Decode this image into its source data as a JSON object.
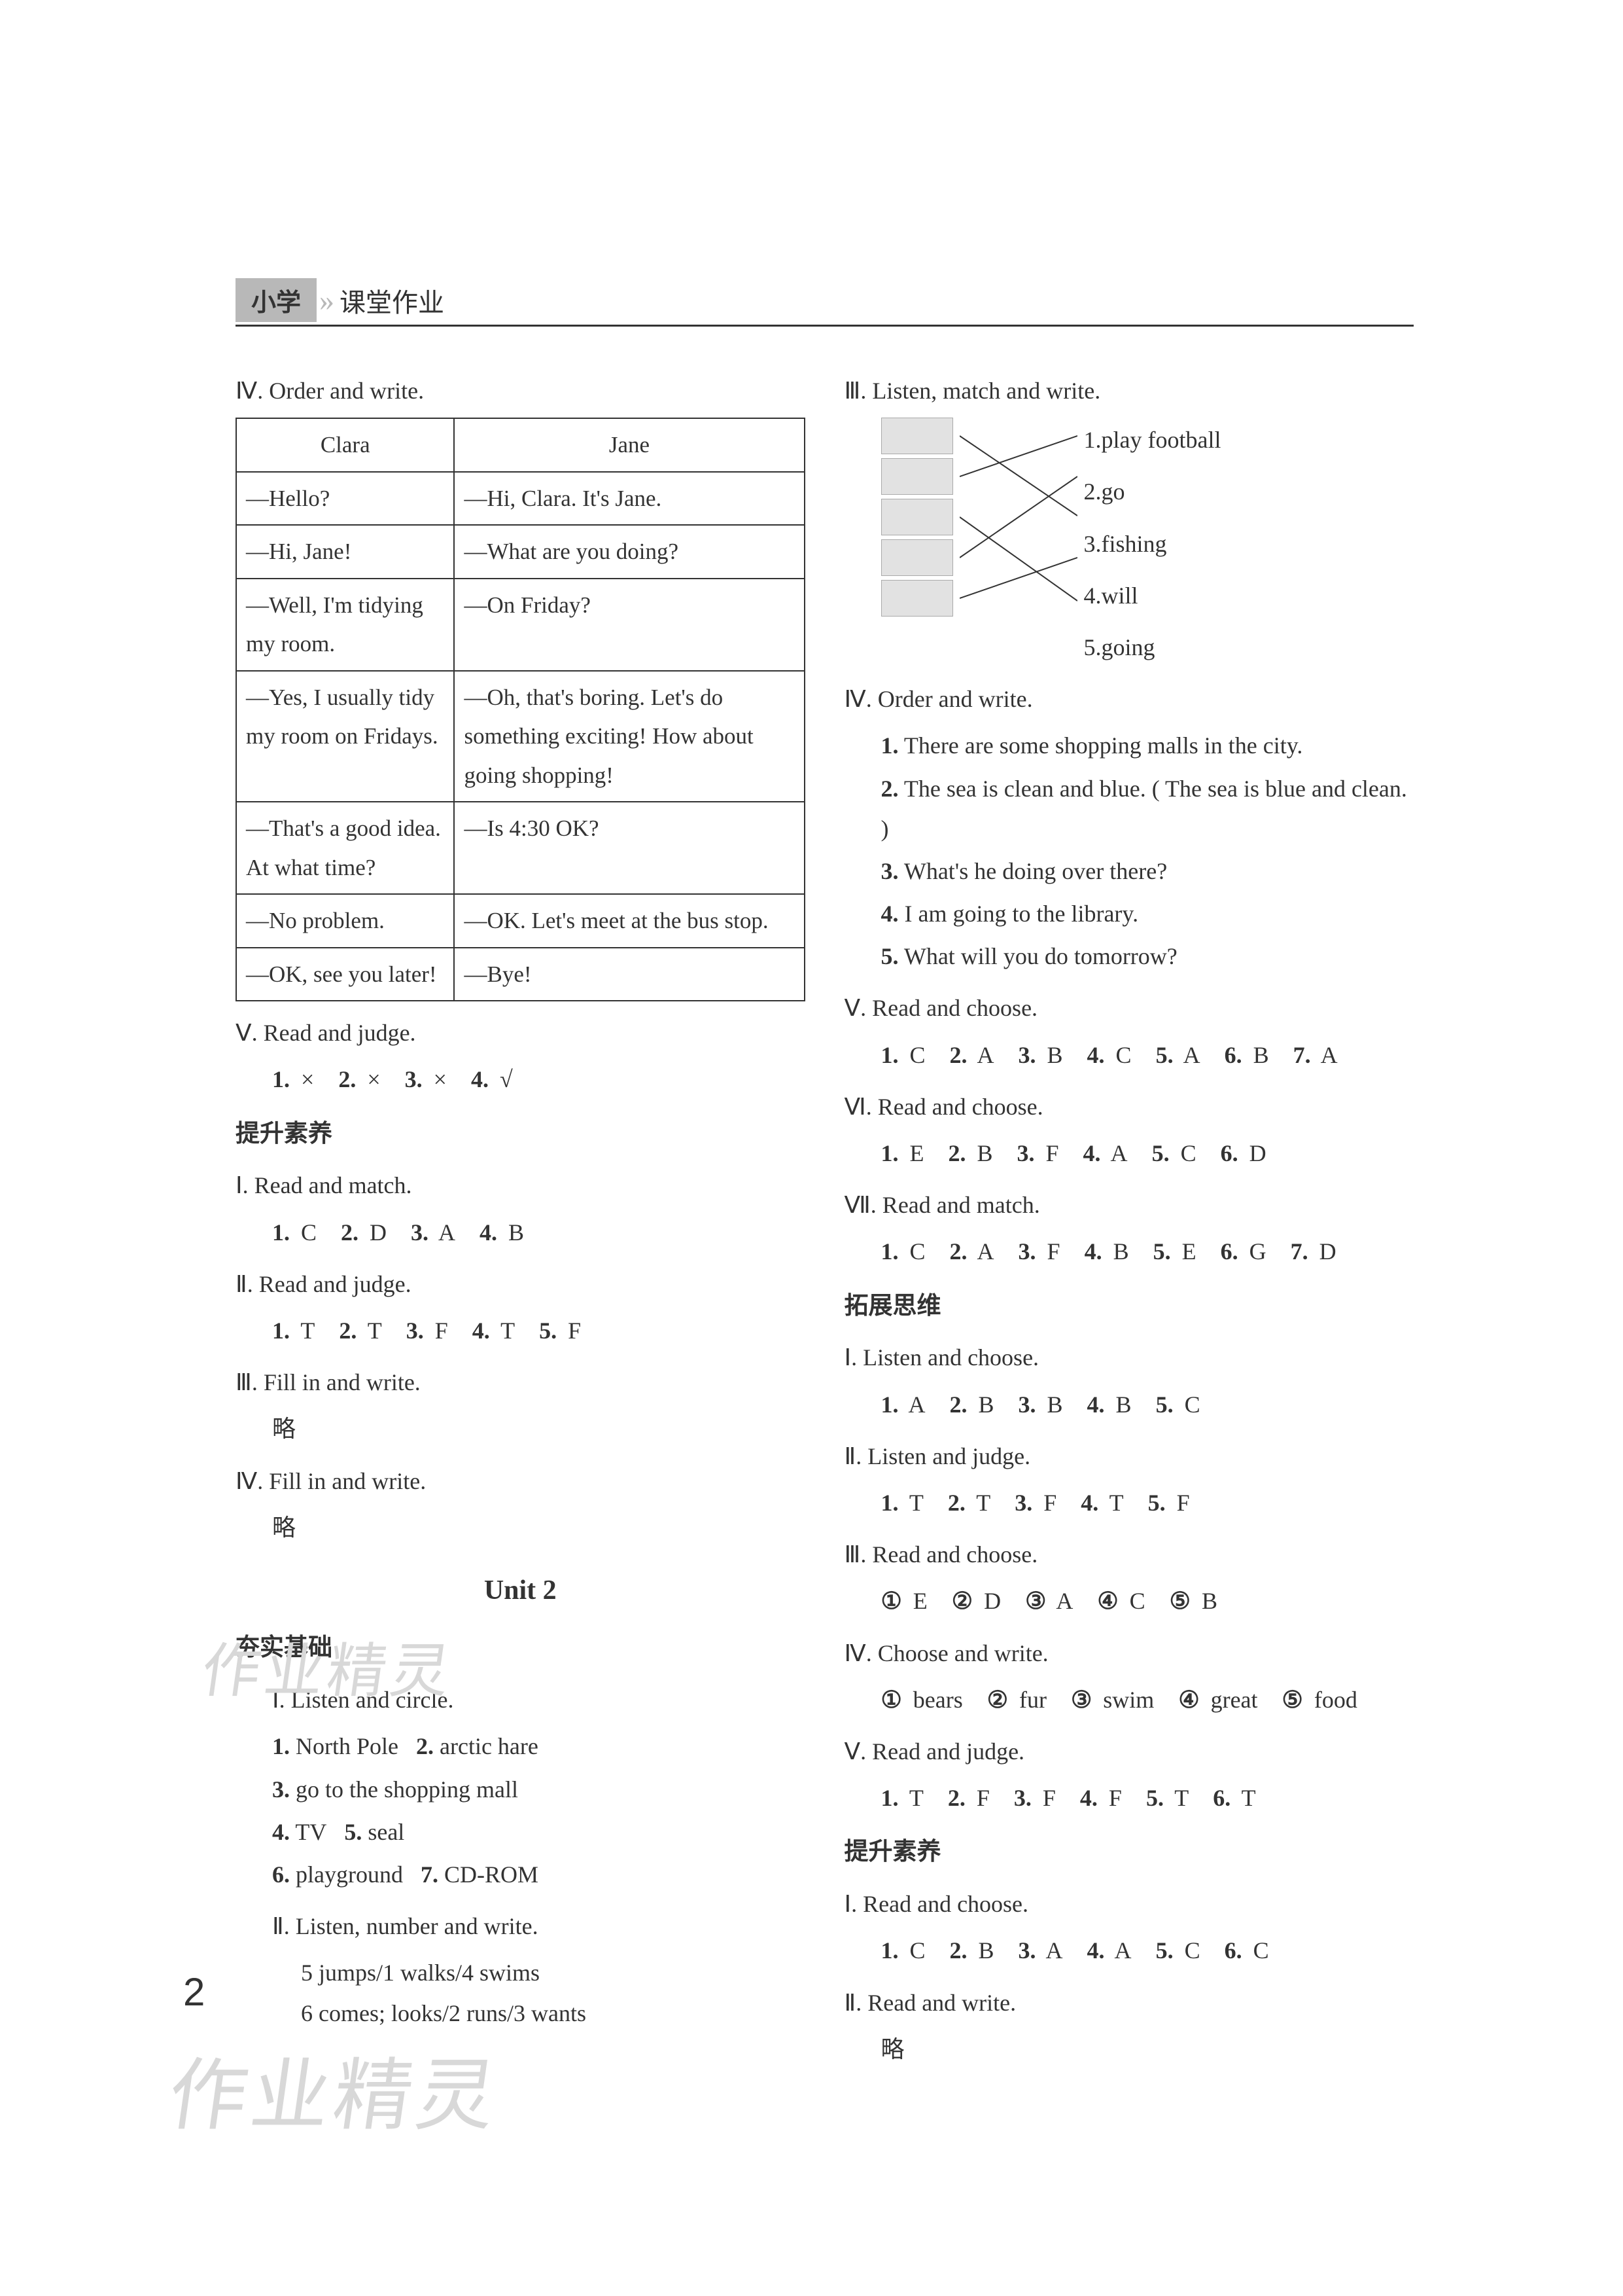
{
  "header": {
    "tag": "小学",
    "sub": "课堂作业"
  },
  "pageNumber": "2",
  "watermark": "作业精灵",
  "left": {
    "s4_title": "Ⅳ. Order and write.",
    "table": {
      "head": [
        "Clara",
        "Jane"
      ],
      "rows": [
        [
          "—Hello?",
          "—Hi, Clara. It's Jane."
        ],
        [
          "—Hi, Jane!",
          "—What are you doing?"
        ],
        [
          "—Well, I'm tidying my room.",
          "—On Friday?"
        ],
        [
          "—Yes, I usually tidy my room on Fridays.",
          "—Oh, that's boring. Let's do something exciting! How about going shopping!"
        ],
        [
          "—That's a good idea. At what time?",
          "—Is 4:30 OK?"
        ],
        [
          "—No problem.",
          "—OK. Let's meet at the bus stop."
        ],
        [
          "—OK, see you later!",
          "—Bye!"
        ]
      ]
    },
    "s5_title": "Ⅴ. Read and judge.",
    "s5_ans": [
      [
        "1.",
        "×"
      ],
      [
        "2.",
        "×"
      ],
      [
        "3.",
        "×"
      ],
      [
        "4.",
        "√"
      ]
    ],
    "lift_title": "提升素养",
    "l1_title": "Ⅰ. Read and match.",
    "l1_ans": [
      [
        "1.",
        "C"
      ],
      [
        "2.",
        "D"
      ],
      [
        "3.",
        "A"
      ],
      [
        "4.",
        "B"
      ]
    ],
    "l2_title": "Ⅱ. Read and judge.",
    "l2_ans": [
      [
        "1.",
        "T"
      ],
      [
        "2.",
        "T"
      ],
      [
        "3.",
        "F"
      ],
      [
        "4.",
        "T"
      ],
      [
        "5.",
        "F"
      ]
    ],
    "l3_title": "Ⅲ. Fill in and write.",
    "l3_ans": "略",
    "l4_title": "Ⅳ. Fill in and write.",
    "l4_ans": "略",
    "unit_title": "Unit 2",
    "base_title": "夯实基础",
    "b1_title": "Ⅰ. Listen and circle.",
    "b1_lines": [
      [
        [
          "1.",
          "North Pole"
        ],
        [
          "2.",
          "arctic hare"
        ]
      ],
      [
        [
          "3.",
          "go to the shopping mall"
        ]
      ],
      [
        [
          "4.",
          "TV"
        ],
        [
          "5.",
          "seal"
        ]
      ],
      [
        [
          "6.",
          "playground"
        ],
        [
          "7.",
          "CD-ROM"
        ]
      ]
    ],
    "b2_title": "Ⅱ. Listen, number and write.",
    "b2_lines": [
      "5 jumps/1 walks/4 swims",
      "6 comes; looks/2 runs/3 wants"
    ]
  },
  "right": {
    "s3_title": "Ⅲ. Listen, match and write.",
    "match_labels": [
      "1.play football",
      "2.go",
      "3.fishing",
      "4.will",
      "5.going"
    ],
    "s4_title": "Ⅳ. Order and write.",
    "s4_list": [
      [
        "1.",
        "There are some shopping malls in the city."
      ],
      [
        "2.",
        "The sea is clean and blue. ( The sea is blue and clean. )"
      ],
      [
        "3.",
        "What's he doing over there?"
      ],
      [
        "4.",
        "I am going to the library."
      ],
      [
        "5.",
        "What will you do tomorrow?"
      ]
    ],
    "s5_title": "Ⅴ. Read and choose.",
    "s5_ans": [
      [
        "1.",
        "C"
      ],
      [
        "2.",
        "A"
      ],
      [
        "3.",
        "B"
      ],
      [
        "4.",
        "C"
      ],
      [
        "5.",
        "A"
      ],
      [
        "6.",
        "B"
      ],
      [
        "7.",
        "A"
      ]
    ],
    "s6_title": "Ⅵ. Read and choose.",
    "s6_ans": [
      [
        "1.",
        "E"
      ],
      [
        "2.",
        "B"
      ],
      [
        "3.",
        "F"
      ],
      [
        "4.",
        "A"
      ],
      [
        "5.",
        "C"
      ],
      [
        "6.",
        "D"
      ]
    ],
    "s7_title": "Ⅶ. Read and match.",
    "s7_ans": [
      [
        "1.",
        "C"
      ],
      [
        "2.",
        "A"
      ],
      [
        "3.",
        "F"
      ],
      [
        "4.",
        "B"
      ],
      [
        "5.",
        "E"
      ],
      [
        "6.",
        "G"
      ],
      [
        "7.",
        "D"
      ]
    ],
    "expand_title": "拓展思维",
    "e1_title": "Ⅰ. Listen and choose.",
    "e1_ans": [
      [
        "1.",
        "A"
      ],
      [
        "2.",
        "B"
      ],
      [
        "3.",
        "B"
      ],
      [
        "4.",
        "B"
      ],
      [
        "5.",
        "C"
      ]
    ],
    "e2_title": "Ⅱ. Listen and judge.",
    "e2_ans": [
      [
        "1.",
        "T"
      ],
      [
        "2.",
        "T"
      ],
      [
        "3.",
        "F"
      ],
      [
        "4.",
        "T"
      ],
      [
        "5.",
        "F"
      ]
    ],
    "e3_title": "Ⅲ. Read and choose.",
    "e3_ans": [
      [
        "①",
        "E"
      ],
      [
        "②",
        "D"
      ],
      [
        "③",
        "A"
      ],
      [
        "④",
        "C"
      ],
      [
        "⑤",
        "B"
      ]
    ],
    "e4_title": "Ⅳ. Choose and write.",
    "e4_ans": [
      [
        "①",
        "bears"
      ],
      [
        "②",
        "fur"
      ],
      [
        "③",
        "swim"
      ],
      [
        "④",
        "great"
      ],
      [
        "⑤",
        "food"
      ]
    ],
    "e5_title": "Ⅴ. Read and judge.",
    "e5_ans": [
      [
        "1.",
        "T"
      ],
      [
        "2.",
        "F"
      ],
      [
        "3.",
        "F"
      ],
      [
        "4.",
        "F"
      ],
      [
        "5.",
        "T"
      ],
      [
        "6.",
        "T"
      ]
    ],
    "lift_title": "提升素养",
    "r1_title": "Ⅰ. Read and choose.",
    "r1_ans": [
      [
        "1.",
        "C"
      ],
      [
        "2.",
        "B"
      ],
      [
        "3.",
        "A"
      ],
      [
        "4.",
        "A"
      ],
      [
        "5.",
        "C"
      ],
      [
        "6.",
        "C"
      ]
    ],
    "r2_title": "Ⅱ. Read and write.",
    "r2_ans": "略"
  }
}
